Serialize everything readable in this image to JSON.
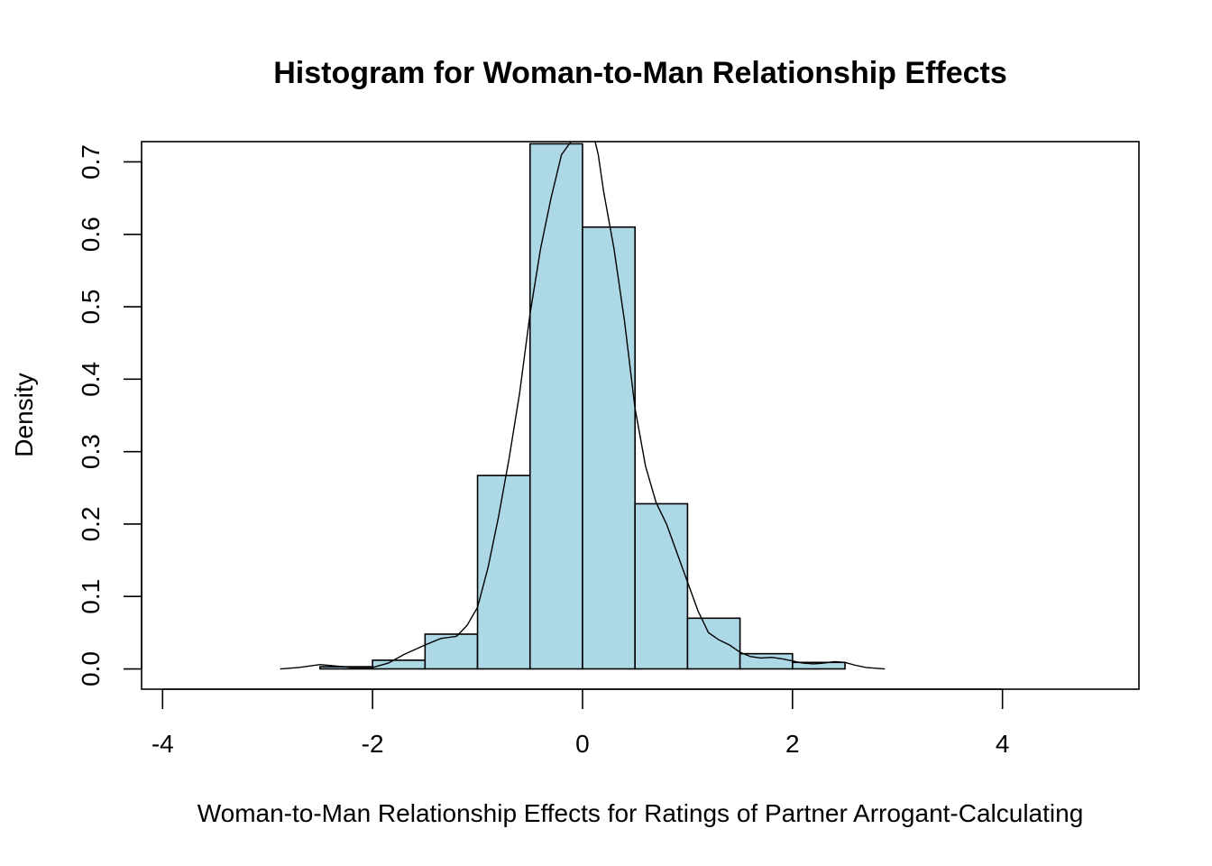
{
  "chart_data": {
    "type": "bar",
    "subtype": "histogram",
    "title": "Histogram for Woman-to-Man Relationship Effects",
    "xlabel": "Woman-to-Man Relationship Effects for Ratings of Partner Arrogant-Calculating",
    "ylabel": "Density",
    "xlim": [
      -4.2,
      5.3
    ],
    "ylim": [
      -0.028,
      0.728
    ],
    "x_ticks": [
      -4,
      -2,
      0,
      2,
      4
    ],
    "y_ticks": [
      0.0,
      0.1,
      0.2,
      0.3,
      0.4,
      0.5,
      0.6,
      0.7
    ],
    "grid": false,
    "bin_edges": [
      -2.5,
      -2.0,
      -1.5,
      -1.0,
      -0.5,
      0.0,
      0.5,
      1.0,
      1.5,
      2.0,
      2.5
    ],
    "values": [
      0.003,
      0.012,
      0.048,
      0.267,
      0.725,
      0.61,
      0.228,
      0.07,
      0.021,
      0.009
    ],
    "colors": {
      "bar_fill": "#add8e6",
      "outline": "#000000"
    },
    "density_curve": {
      "x": [
        -2.88,
        -2.7,
        -2.5,
        -2.35,
        -2.2,
        -2.0,
        -1.85,
        -1.7,
        -1.5,
        -1.35,
        -1.2,
        -1.1,
        -1.0,
        -0.9,
        -0.8,
        -0.7,
        -0.6,
        -0.5,
        -0.4,
        -0.3,
        -0.2,
        -0.1,
        -0.05,
        0.0,
        0.05,
        0.1,
        0.15,
        0.2,
        0.3,
        0.4,
        0.5,
        0.6,
        0.7,
        0.8,
        0.9,
        1.0,
        1.1,
        1.2,
        1.3,
        1.4,
        1.5,
        1.6,
        1.7,
        1.8,
        1.9,
        2.0,
        2.1,
        2.2,
        2.3,
        2.4,
        2.5,
        2.6,
        2.7,
        2.88
      ],
      "y": [
        0.0,
        0.002,
        0.006,
        0.004,
        0.002,
        0.002,
        0.008,
        0.02,
        0.033,
        0.042,
        0.045,
        0.06,
        0.085,
        0.14,
        0.21,
        0.29,
        0.38,
        0.49,
        0.58,
        0.65,
        0.71,
        0.73,
        0.74,
        0.75,
        0.76,
        0.74,
        0.71,
        0.66,
        0.58,
        0.48,
        0.36,
        0.28,
        0.23,
        0.2,
        0.16,
        0.12,
        0.08,
        0.05,
        0.04,
        0.033,
        0.023,
        0.017,
        0.015,
        0.016,
        0.014,
        0.011,
        0.008,
        0.007,
        0.008,
        0.01,
        0.009,
        0.005,
        0.002,
        0.0
      ]
    }
  }
}
